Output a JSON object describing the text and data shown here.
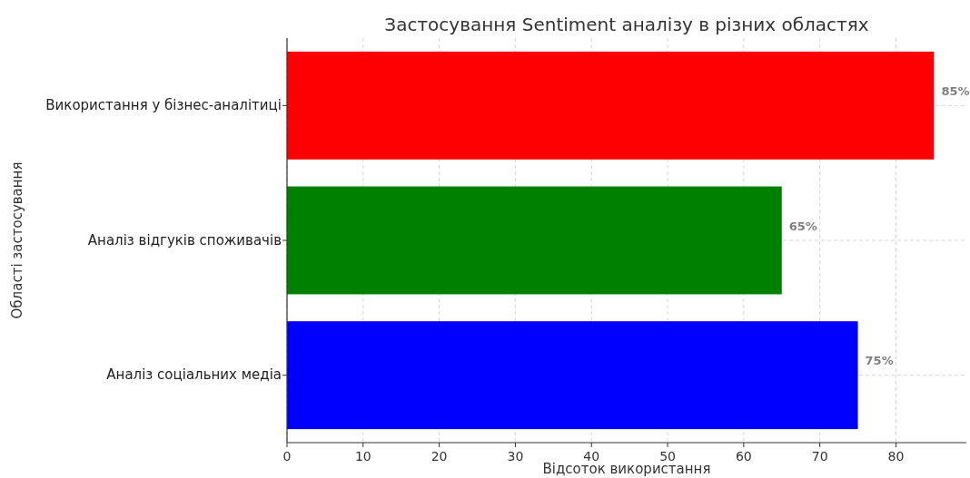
{
  "chart_data": {
    "type": "bar",
    "orientation": "horizontal",
    "title": "Застосування Sentiment аналізу в різних областях",
    "xlabel": "Відсоток використання",
    "ylabel": "Області застосування",
    "categories": [
      "Використання у бізнес-аналітиці",
      "Аналіз відгуків споживачів",
      "Аналіз соціальних медіа"
    ],
    "values": [
      85,
      65,
      75
    ],
    "colors": [
      "#ff0000",
      "#008000",
      "#0000ff"
    ],
    "value_labels": [
      "85%",
      "65%",
      "75%"
    ],
    "xlim": [
      0,
      89.25
    ],
    "xticks": [
      0,
      10,
      20,
      30,
      40,
      50,
      60,
      70,
      80
    ],
    "grid": true
  }
}
